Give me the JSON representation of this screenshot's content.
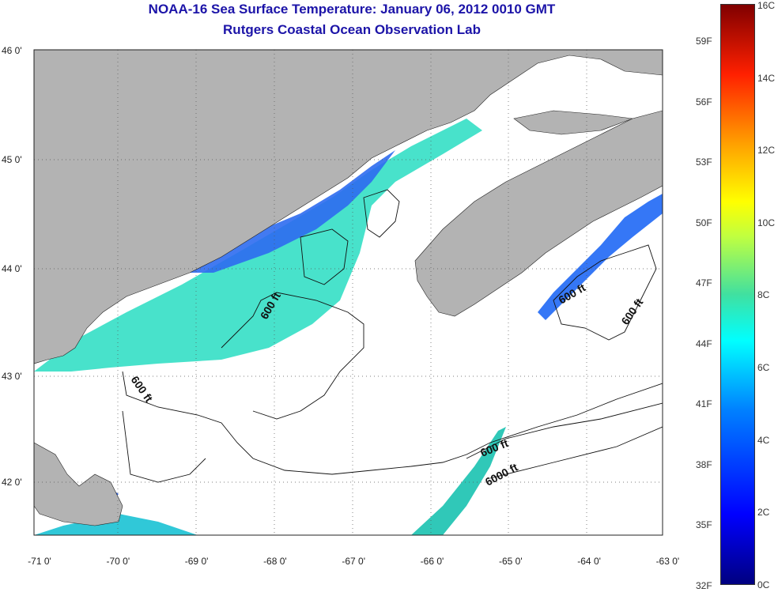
{
  "title_line1": "NOAA-16 Sea Surface Temperature:  January 06, 2012 0010 GMT",
  "title_line2": "Rutgers Coastal Ocean Observation Lab",
  "lon_ticks": [
    "-71 0'",
    "-70 0'",
    "-69 0'",
    "-68 0'",
    "-67 0'",
    "-66 0'",
    "-65 0'",
    "-64 0'",
    "-63 0'"
  ],
  "lat_ticks": [
    "46 0'",
    "45 0'",
    "44 0'",
    "43 0'",
    "42 0'"
  ],
  "contour_labels": [
    "600 ft",
    "600 ft",
    "600 ft",
    "600 ft",
    "600 ft",
    "6000 ft"
  ],
  "colorbar": {
    "celsius": [
      "16C",
      "14C",
      "12C",
      "10C",
      "8C",
      "6C",
      "4C",
      "2C",
      "0C"
    ],
    "fahrenheit": [
      "59F",
      "56F",
      "53F",
      "50F",
      "47F",
      "44F",
      "41F",
      "38F",
      "35F",
      "32F"
    ]
  },
  "colors": {
    "land": "#b3b3b3",
    "ocean": "#ffffff",
    "title": "#1c14a8",
    "warm_sst": "#40e8c0",
    "cool_sst": "#2060ff"
  }
}
